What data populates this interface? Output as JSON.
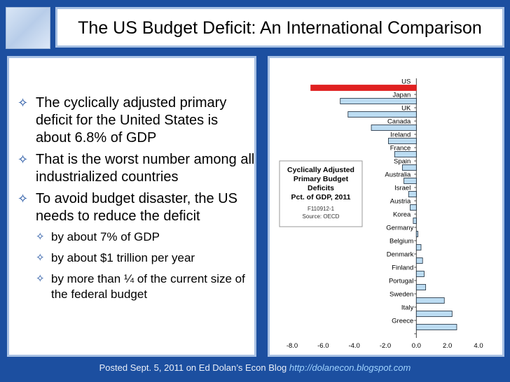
{
  "slide": {
    "title": "The US Budget Deficit: An International Comparison",
    "bullets": [
      {
        "text": "The cyclically adjusted primary deficit for the United States is about 6.8% of GDP",
        "level": 1
      },
      {
        "text": "That is the worst number among all industrialized countries",
        "level": 1
      },
      {
        "text": "To avoid budget disaster, the US needs to reduce the deficit",
        "level": 1
      },
      {
        "text": "by about 7% of GDP",
        "level": 2
      },
      {
        "text": "by about $1 trillion per year",
        "level": 2
      },
      {
        "text": "by more than ¼  of the current size of the federal budget",
        "level": 2
      }
    ],
    "bullet_glyph": "✧"
  },
  "footer": {
    "text": "Posted Sept. 5, 2011 on Ed Dolan’s Econ Blog",
    "link": "http://dolanecon.blogspot.com"
  },
  "chart_data": {
    "type": "bar",
    "orientation": "horizontal",
    "legend_box": [
      "Cyclically Adjusted",
      "Primary Budget",
      "Deficits",
      "Pct. of GDP, 2011"
    ],
    "legend_notes": [
      "F110912-1",
      "Source: OECD"
    ],
    "categories": [
      "US",
      "Japan",
      "UK",
      "Canada",
      "Ireland",
      "France",
      "Spain",
      "Australia",
      "Israel",
      "Austria",
      "Korea",
      "Germany",
      "Belgium",
      "Denmark",
      "Finland",
      "Portugal",
      "Sweden",
      "Italy",
      "Greece"
    ],
    "values": [
      -6.8,
      -4.9,
      -4.4,
      -2.9,
      -1.8,
      -1.4,
      -0.9,
      -0.8,
      -0.5,
      -0.4,
      -0.2,
      0.1,
      0.3,
      0.4,
      0.5,
      0.6,
      1.8,
      2.3,
      2.6
    ],
    "highlight_color": "#e02020",
    "bar_color": "#bcdcf2",
    "bar_stroke": "#1a2a3a",
    "xlim": [
      -8,
      4
    ],
    "xticks": [
      "-8.0",
      "-6.0",
      "-4.0",
      "-2.0",
      "0.0",
      "2.0",
      "4.0"
    ],
    "grid": false
  }
}
